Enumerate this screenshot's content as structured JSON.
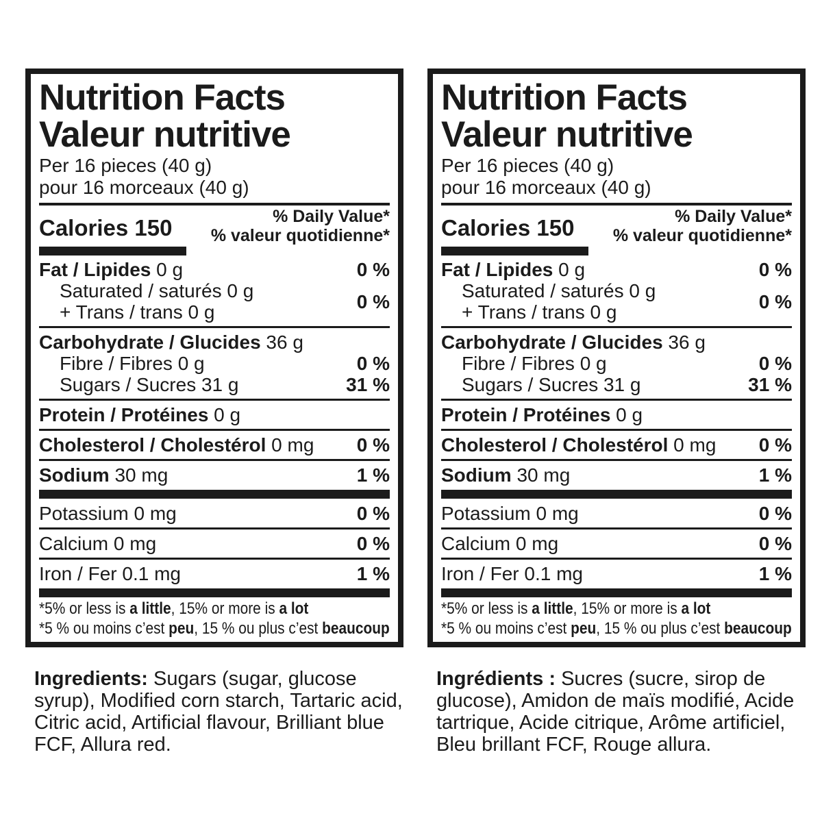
{
  "panel": {
    "title_en": "Nutrition Facts",
    "title_fr": "Valeur nutritive",
    "serving_en": "Per 16 pieces (40 g)",
    "serving_fr": "pour 16 morceaux (40 g)",
    "calories_label": "Calories",
    "calories_value": "150",
    "dv_en": "% Daily Value*",
    "dv_fr": "% valeur quotidienne*",
    "fat": {
      "bold": "Fat / Lipides",
      "rest": " 0 g",
      "pct": "0 %"
    },
    "sat_trans": {
      "line1": "Saturated / saturés 0 g",
      "line2": "+ Trans / trans 0 g",
      "pct": "0 %"
    },
    "carb": {
      "bold": "Carbohydrate / Glucides",
      "rest": " 36 g"
    },
    "fibre": {
      "text": "Fibre / Fibres 0 g",
      "pct": "0 %"
    },
    "sugars": {
      "text": "Sugars / Sucres 31 g",
      "pct": "31 %"
    },
    "protein": {
      "bold": "Protein / Protéines",
      "rest": " 0 g"
    },
    "cholesterol": {
      "bold": "Cholesterol / Cholestérol",
      "rest": " 0 mg",
      "pct": "0 %"
    },
    "sodium": {
      "bold": "Sodium",
      "rest": " 30 mg",
      "pct": "1 %"
    },
    "potassium": {
      "text": "Potassium 0 mg",
      "pct": "0 %"
    },
    "calcium": {
      "text": "Calcium 0 mg",
      "pct": "0 %"
    },
    "iron": {
      "text": "Iron / Fer 0.1 mg",
      "pct": "1 %"
    },
    "footnote_en": {
      "pre": "*5% or less is ",
      "b1": "a little",
      "mid": ", 15% or more is ",
      "b2": "a lot"
    },
    "footnote_fr": {
      "pre": "*5 % ou moins c’est ",
      "b1": "peu",
      "mid": ", 15 % ou plus c’est ",
      "b2": "beaucoup"
    }
  },
  "ingredients_en": {
    "label": "Ingredients:",
    "text": "Sugars (sugar, glucose syrup), Modified corn starch, Tartaric acid, Citric acid, Artificial flavour, Brilliant blue FCF, Allura red."
  },
  "ingredients_fr": {
    "label": "Ingrédients :",
    "text": "Sucres (sucre, sirop de glucose), Amidon de maïs modifié, Acide tartrique, Acide citrique, Arôme artificiel, Bleu brillant FCF, Rouge allura."
  }
}
